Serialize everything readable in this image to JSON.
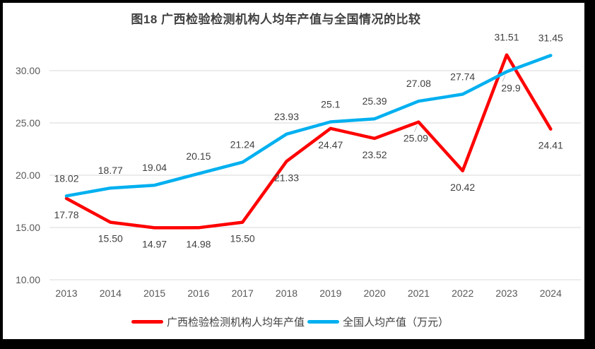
{
  "frame": {
    "border_color": "#000000",
    "background": "#FFFFFF"
  },
  "chart_data": {
    "type": "line",
    "title": "图18 广西检验检测机构人均年产值与全国情况的比较",
    "categories": [
      "2013",
      "2014",
      "2015",
      "2016",
      "2017",
      "2018",
      "2019",
      "2020",
      "2021",
      "2022",
      "2023",
      "2024"
    ],
    "series": [
      {
        "name": "广西检验检测机构人均年产值",
        "color": "#FF0000",
        "values": [
          17.78,
          15.5,
          14.97,
          14.98,
          15.5,
          21.33,
          24.47,
          23.52,
          25.09,
          20.42,
          31.51,
          24.41
        ],
        "labels": [
          "17.78",
          "15.50",
          "14.97",
          "14.98",
          "15.50",
          "21.33",
          "24.47",
          "23.52",
          "25.09",
          "20.42",
          "31.51",
          "24.41"
        ],
        "label_positions": [
          "below",
          "below",
          "below",
          "below",
          "below",
          "below",
          "below",
          "below",
          "below-leader-left",
          "below",
          "above",
          "below"
        ]
      },
      {
        "name": "全国人均产值（万元）",
        "color": "#00B0F0",
        "values": [
          18.02,
          18.77,
          19.04,
          20.15,
          21.24,
          23.93,
          25.1,
          25.39,
          27.08,
          27.74,
          29.9,
          31.45
        ],
        "labels": [
          "18.02",
          "18.77",
          "19.04",
          "20.15",
          "21.24",
          "23.93",
          "25.1",
          "25.39",
          "27.08",
          "27.74",
          "29.9",
          "31.45"
        ],
        "label_positions": [
          "above",
          "above",
          "above",
          "above",
          "above",
          "above",
          "above",
          "above",
          "above",
          "above",
          "below-leader-right",
          "above"
        ]
      }
    ],
    "y_axis": {
      "tick_labels": [
        "30.00",
        "25.00",
        "20.00",
        "15.00",
        "10.00"
      ],
      "tick_values": [
        30,
        25,
        20,
        15,
        10
      ],
      "min": 10,
      "max": 32.2,
      "grid": true
    },
    "x_axis": {
      "label": ""
    },
    "legend_position": "bottom",
    "colors": {
      "grid": "#D9D9D9",
      "axis_text": "#595959",
      "data_label_text": "#404040",
      "title_text": "#404040",
      "leader": "#BFBFBF"
    }
  }
}
